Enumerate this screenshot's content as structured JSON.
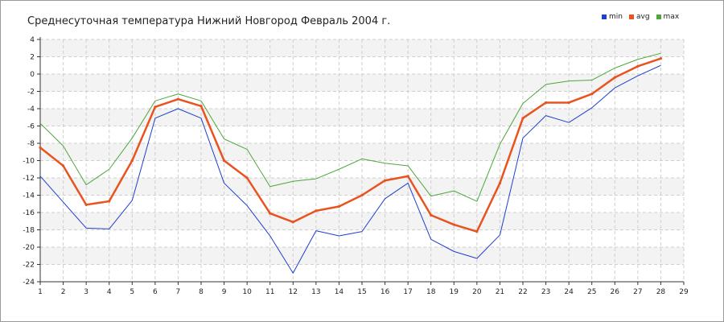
{
  "chart_data": {
    "type": "line",
    "title": "Среднесуточная температура Нижний Новгород  Февраль 2004 г.",
    "x": [
      1,
      2,
      3,
      4,
      5,
      6,
      7,
      8,
      9,
      10,
      11,
      12,
      13,
      14,
      15,
      16,
      17,
      18,
      19,
      20,
      21,
      22,
      23,
      24,
      25,
      26,
      27,
      28
    ],
    "xlim": [
      1,
      29
    ],
    "ylim": [
      -24,
      4
    ],
    "xticks": [
      1,
      2,
      3,
      4,
      5,
      6,
      7,
      8,
      9,
      10,
      11,
      12,
      13,
      14,
      15,
      16,
      17,
      18,
      19,
      20,
      21,
      22,
      23,
      24,
      25,
      26,
      27,
      28,
      29
    ],
    "yticks": [
      4,
      2,
      0,
      -2,
      -4,
      -6,
      -8,
      -10,
      -12,
      -14,
      -16,
      -18,
      -20,
      -22,
      -24
    ],
    "grid": true,
    "legend_position": "top-right",
    "series": [
      {
        "name": "min",
        "color": "#1f3fcf",
        "values": [
          -11.8,
          -14.8,
          -17.8,
          -17.9,
          -14.6,
          -5.1,
          -4.0,
          -5.1,
          -12.6,
          -15.2,
          -18.7,
          -23.0,
          -18.1,
          -18.7,
          -18.2,
          -14.4,
          -12.6,
          -19.1,
          -20.5,
          -21.3,
          -18.6,
          -7.4,
          -4.8,
          -5.6,
          -3.9,
          -1.6,
          -0.2,
          1.0
        ]
      },
      {
        "name": "avg",
        "color": "#e8531f",
        "values": [
          -8.5,
          -10.6,
          -15.1,
          -14.7,
          -10.0,
          -3.8,
          -2.9,
          -3.7,
          -10.0,
          -12.0,
          -16.1,
          -17.1,
          -15.8,
          -15.3,
          -14.0,
          -12.3,
          -11.8,
          -16.3,
          -17.4,
          -18.2,
          -12.6,
          -5.1,
          -3.3,
          -3.3,
          -2.3,
          -0.4,
          0.9,
          1.8
        ]
      },
      {
        "name": "max",
        "color": "#4ca83a",
        "values": [
          -5.7,
          -8.3,
          -12.8,
          -11.0,
          -7.4,
          -3.1,
          -2.3,
          -3.1,
          -7.5,
          -8.7,
          -13.0,
          -12.4,
          -12.1,
          -11.0,
          -9.8,
          -10.3,
          -10.6,
          -14.1,
          -13.5,
          -14.7,
          -8.1,
          -3.4,
          -1.2,
          -0.8,
          -0.7,
          0.7,
          1.7,
          2.4
        ]
      }
    ]
  }
}
